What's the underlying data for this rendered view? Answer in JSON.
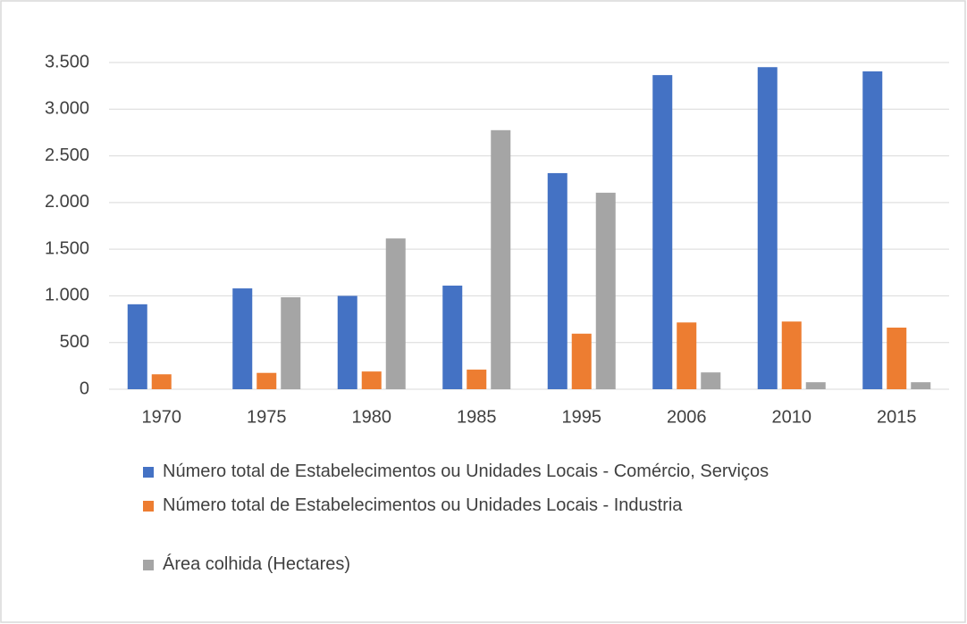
{
  "chart_data": {
    "type": "bar",
    "categories": [
      "1970",
      "1975",
      "1980",
      "1985",
      "1995",
      "2006",
      "2010",
      "2015"
    ],
    "series": [
      {
        "name": "Número total de Estabelecimentos ou Unidades Locais - Comércio, Serviços",
        "color": "#4472c4",
        "values": [
          910,
          1080,
          1000,
          1110,
          2315,
          3365,
          3450,
          3405
        ]
      },
      {
        "name": "Número total de Estabelecimentos ou Unidades Locais - Industria",
        "color": "#ed7d31",
        "values": [
          160,
          175,
          190,
          210,
          595,
          715,
          725,
          660
        ]
      },
      {
        "name": "Área colhida (Hectares)",
        "color": "#a5a5a5",
        "values": [
          0,
          985,
          1615,
          2775,
          2105,
          180,
          75,
          75
        ]
      }
    ],
    "ylim": [
      0,
      3500
    ],
    "yticks": [
      0,
      500,
      {
        "value": 1000,
        "label": "1.000"
      },
      {
        "value": 1500,
        "label": "1.500"
      },
      {
        "value": 2000,
        "label": "2.000"
      },
      {
        "value": 2500,
        "label": "2.500"
      },
      {
        "value": 3000,
        "label": "3.000"
      },
      {
        "value": 3500,
        "label": "3.500"
      }
    ],
    "grid": true,
    "legend": "bottom"
  }
}
